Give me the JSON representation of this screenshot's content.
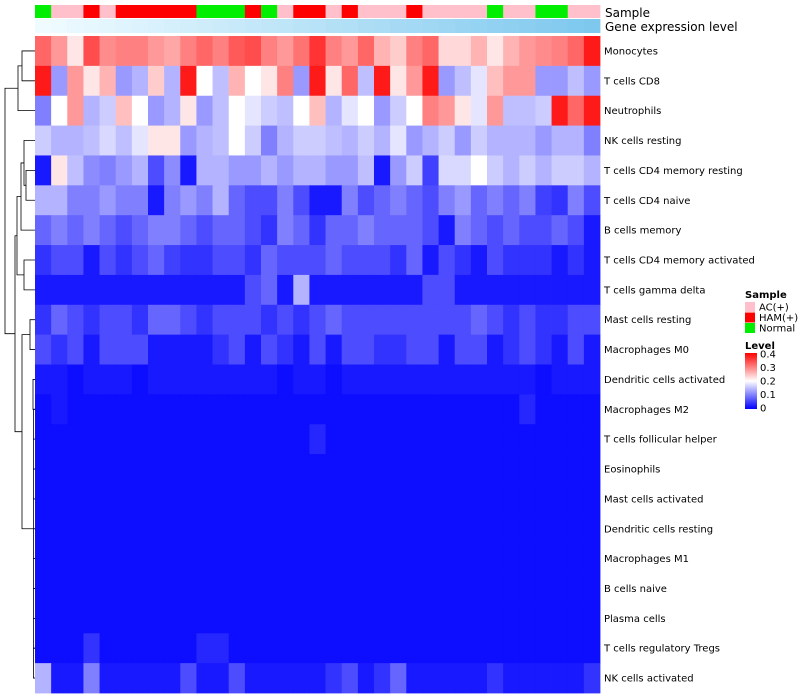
{
  "chart_data": {
    "type": "heatmap",
    "title": "",
    "annotations": [
      {
        "name": "Sample",
        "type": "categorical"
      },
      {
        "name": "Gene expression level",
        "type": "continuous"
      }
    ],
    "sample_groups": [
      "Normal",
      "AC(+)",
      "AC(+)",
      "HAM(+)",
      "AC(+)",
      "HAM(+)",
      "HAM(+)",
      "HAM(+)",
      "HAM(+)",
      "HAM(+)",
      "Normal",
      "Normal",
      "Normal",
      "HAM(+)",
      "Normal",
      "AC(+)",
      "HAM(+)",
      "HAM(+)",
      "AC(+)",
      "HAM(+)",
      "AC(+)",
      "AC(+)",
      "AC(+)",
      "HAM(+)",
      "AC(+)",
      "AC(+)",
      "AC(+)",
      "AC(+)",
      "Normal",
      "AC(+)",
      "AC(+)",
      "Normal",
      "Normal",
      "AC(+)",
      "AC(+)"
    ],
    "rows": [
      "Monocytes",
      "T cells CD8",
      "Neutrophils",
      "NK cells resting",
      "T cells CD4 memory resting",
      "T cells CD4 naive",
      "B cells memory",
      "T cells CD4 memory activated",
      "T cells gamma delta",
      "Mast cells resting",
      "Macrophages M0",
      "Dendritic cells activated",
      "Macrophages M2",
      "T cells follicular helper",
      "Eosinophils",
      "Mast cells activated",
      "Dendritic cells resting",
      "Macrophages M1",
      "B cells naive",
      "Plasma cells",
      "T cells regulatory  Tregs",
      "NK cells activated"
    ],
    "values": [
      [
        0.32,
        0.28,
        0.22,
        0.34,
        0.29,
        0.3,
        0.3,
        0.28,
        0.27,
        0.3,
        0.32,
        0.3,
        0.33,
        0.34,
        0.3,
        0.28,
        0.31,
        0.36,
        0.3,
        0.28,
        0.32,
        0.26,
        0.24,
        0.3,
        0.32,
        0.23,
        0.23,
        0.26,
        0.22,
        0.26,
        0.28,
        0.29,
        0.3,
        0.32,
        0.38
      ],
      [
        0.38,
        0.12,
        0.28,
        0.22,
        0.26,
        0.12,
        0.14,
        0.24,
        0.14,
        0.38,
        0.2,
        0.15,
        0.26,
        0.2,
        0.22,
        0.3,
        0.12,
        0.38,
        0.22,
        0.32,
        0.15,
        0.38,
        0.22,
        0.28,
        0.38,
        0.12,
        0.15,
        0.18,
        0.25,
        0.28,
        0.28,
        0.12,
        0.12,
        0.15,
        0.12
      ],
      [
        0.1,
        0.2,
        0.28,
        0.14,
        0.16,
        0.25,
        0.2,
        0.12,
        0.14,
        0.22,
        0.12,
        0.15,
        0.2,
        0.18,
        0.16,
        0.15,
        0.2,
        0.25,
        0.14,
        0.18,
        0.2,
        0.12,
        0.16,
        0.2,
        0.3,
        0.28,
        0.22,
        0.18,
        0.28,
        0.15,
        0.15,
        0.16,
        0.38,
        0.32,
        0.38
      ],
      [
        0.16,
        0.14,
        0.14,
        0.15,
        0.17,
        0.15,
        0.18,
        0.22,
        0.22,
        0.12,
        0.14,
        0.15,
        0.2,
        0.16,
        0.1,
        0.14,
        0.16,
        0.16,
        0.15,
        0.14,
        0.16,
        0.14,
        0.18,
        0.12,
        0.14,
        0.16,
        0.12,
        0.16,
        0.14,
        0.14,
        0.14,
        0.12,
        0.14,
        0.14,
        0.1
      ],
      [
        0.02,
        0.22,
        0.15,
        0.11,
        0.1,
        0.12,
        0.14,
        0.06,
        0.11,
        0.02,
        0.14,
        0.14,
        0.12,
        0.12,
        0.14,
        0.12,
        0.14,
        0.14,
        0.12,
        0.12,
        0.15,
        0.02,
        0.12,
        0.16,
        0.05,
        0.17,
        0.17,
        0.2,
        0.16,
        0.14,
        0.16,
        0.14,
        0.16,
        0.16,
        0.14
      ],
      [
        0.14,
        0.14,
        0.1,
        0.1,
        0.12,
        0.1,
        0.1,
        0.02,
        0.1,
        0.12,
        0.1,
        0.14,
        0.08,
        0.06,
        0.06,
        0.1,
        0.06,
        0.02,
        0.02,
        0.1,
        0.06,
        0.08,
        0.1,
        0.08,
        0.06,
        0.1,
        0.12,
        0.08,
        0.1,
        0.08,
        0.1,
        0.05,
        0.04,
        0.1,
        0.06
      ],
      [
        0.08,
        0.1,
        0.08,
        0.1,
        0.08,
        0.06,
        0.08,
        0.1,
        0.1,
        0.08,
        0.06,
        0.08,
        0.08,
        0.06,
        0.04,
        0.1,
        0.08,
        0.04,
        0.08,
        0.08,
        0.1,
        0.08,
        0.08,
        0.08,
        0.06,
        0.02,
        0.1,
        0.08,
        0.06,
        0.08,
        0.06,
        0.06,
        0.08,
        0.06,
        0.02
      ],
      [
        0.04,
        0.06,
        0.06,
        0.02,
        0.06,
        0.04,
        0.06,
        0.08,
        0.05,
        0.04,
        0.04,
        0.06,
        0.06,
        0.04,
        0.08,
        0.06,
        0.06,
        0.06,
        0.08,
        0.06,
        0.06,
        0.06,
        0.04,
        0.08,
        0.02,
        0.06,
        0.04,
        0.02,
        0.06,
        0.04,
        0.04,
        0.04,
        0.02,
        0.04,
        0.02
      ],
      [
        0.02,
        0.02,
        0.02,
        0.02,
        0.02,
        0.02,
        0.02,
        0.02,
        0.02,
        0.02,
        0.02,
        0.02,
        0.02,
        0.06,
        0.08,
        0.02,
        0.14,
        0.02,
        0.02,
        0.02,
        0.02,
        0.02,
        0.02,
        0.02,
        0.06,
        0.06,
        0.02,
        0.02,
        0.02,
        0.02,
        0.02,
        0.02,
        0.02,
        0.02,
        0.02
      ],
      [
        0.04,
        0.08,
        0.06,
        0.04,
        0.06,
        0.06,
        0.04,
        0.08,
        0.08,
        0.06,
        0.04,
        0.06,
        0.06,
        0.06,
        0.04,
        0.06,
        0.04,
        0.06,
        0.08,
        0.06,
        0.06,
        0.06,
        0.06,
        0.06,
        0.06,
        0.06,
        0.06,
        0.08,
        0.06,
        0.04,
        0.06,
        0.04,
        0.04,
        0.06,
        0.06
      ],
      [
        0.06,
        0.04,
        0.06,
        0.02,
        0.06,
        0.06,
        0.06,
        0.02,
        0.02,
        0.02,
        0.02,
        0.04,
        0.06,
        0.02,
        0.06,
        0.04,
        0.02,
        0.06,
        0.02,
        0.06,
        0.06,
        0.04,
        0.04,
        0.06,
        0.06,
        0.02,
        0.06,
        0.06,
        0.02,
        0.04,
        0.06,
        0.04,
        0.02,
        0.06,
        0.02
      ],
      [
        0.02,
        0.02,
        0.01,
        0.02,
        0.02,
        0.02,
        0.01,
        0.02,
        0.02,
        0.02,
        0.02,
        0.02,
        0.02,
        0.02,
        0.02,
        0.01,
        0.02,
        0.02,
        0.01,
        0.02,
        0.02,
        0.02,
        0.02,
        0.02,
        0.02,
        0.02,
        0.02,
        0.02,
        0.02,
        0.02,
        0.02,
        0.01,
        0.02,
        0.02,
        0.02
      ],
      [
        0.01,
        0.02,
        0.01,
        0.01,
        0.01,
        0.01,
        0.01,
        0.01,
        0.01,
        0.01,
        0.01,
        0.01,
        0.01,
        0.01,
        0.01,
        0.01,
        0.01,
        0.01,
        0.01,
        0.01,
        0.01,
        0.01,
        0.01,
        0.01,
        0.01,
        0.01,
        0.01,
        0.01,
        0.01,
        0.01,
        0.03,
        0.01,
        0.01,
        0.01,
        0.01
      ],
      [
        0.01,
        0.01,
        0.01,
        0.01,
        0.01,
        0.01,
        0.01,
        0.01,
        0.01,
        0.01,
        0.01,
        0.01,
        0.01,
        0.01,
        0.01,
        0.01,
        0.01,
        0.03,
        0.01,
        0.01,
        0.01,
        0.01,
        0.01,
        0.01,
        0.01,
        0.01,
        0.01,
        0.01,
        0.01,
        0.01,
        0.01,
        0.01,
        0.01,
        0.01,
        0.01
      ],
      [
        0.01,
        0.01,
        0.01,
        0.01,
        0.01,
        0.01,
        0.01,
        0.01,
        0.01,
        0.01,
        0.01,
        0.01,
        0.01,
        0.01,
        0.01,
        0.01,
        0.01,
        0.01,
        0.01,
        0.01,
        0.01,
        0.01,
        0.01,
        0.01,
        0.01,
        0.01,
        0.01,
        0.01,
        0.01,
        0.01,
        0.01,
        0.01,
        0.01,
        0.01,
        0.01
      ],
      [
        0.01,
        0.01,
        0.01,
        0.01,
        0.01,
        0.01,
        0.01,
        0.01,
        0.01,
        0.01,
        0.01,
        0.01,
        0.01,
        0.01,
        0.01,
        0.01,
        0.01,
        0.01,
        0.01,
        0.01,
        0.01,
        0.01,
        0.01,
        0.01,
        0.01,
        0.01,
        0.01,
        0.01,
        0.01,
        0.01,
        0.01,
        0.01,
        0.01,
        0.01,
        0.01
      ],
      [
        0.01,
        0.01,
        0.01,
        0.01,
        0.01,
        0.01,
        0.01,
        0.01,
        0.01,
        0.01,
        0.01,
        0.01,
        0.01,
        0.01,
        0.01,
        0.01,
        0.01,
        0.01,
        0.01,
        0.01,
        0.01,
        0.01,
        0.01,
        0.01,
        0.01,
        0.01,
        0.01,
        0.01,
        0.01,
        0.01,
        0.01,
        0.01,
        0.01,
        0.01,
        0.01
      ],
      [
        0.01,
        0.01,
        0.01,
        0.01,
        0.01,
        0.01,
        0.01,
        0.01,
        0.01,
        0.01,
        0.01,
        0.01,
        0.01,
        0.01,
        0.01,
        0.01,
        0.01,
        0.01,
        0.01,
        0.01,
        0.01,
        0.01,
        0.01,
        0.01,
        0.01,
        0.01,
        0.01,
        0.01,
        0.01,
        0.01,
        0.01,
        0.01,
        0.01,
        0.01,
        0.01
      ],
      [
        0.01,
        0.01,
        0.01,
        0.01,
        0.01,
        0.01,
        0.01,
        0.01,
        0.01,
        0.01,
        0.01,
        0.01,
        0.01,
        0.01,
        0.01,
        0.01,
        0.01,
        0.01,
        0.01,
        0.01,
        0.01,
        0.01,
        0.01,
        0.01,
        0.01,
        0.01,
        0.01,
        0.01,
        0.01,
        0.01,
        0.01,
        0.01,
        0.01,
        0.01,
        0.01
      ],
      [
        0.01,
        0.01,
        0.01,
        0.01,
        0.01,
        0.01,
        0.01,
        0.01,
        0.01,
        0.01,
        0.01,
        0.01,
        0.01,
        0.01,
        0.01,
        0.01,
        0.01,
        0.01,
        0.01,
        0.01,
        0.01,
        0.01,
        0.01,
        0.01,
        0.01,
        0.01,
        0.01,
        0.01,
        0.01,
        0.01,
        0.01,
        0.01,
        0.01,
        0.01,
        0.01
      ],
      [
        0.01,
        0.01,
        0.01,
        0.04,
        0.01,
        0.01,
        0.01,
        0.01,
        0.01,
        0.01,
        0.03,
        0.03,
        0.01,
        0.01,
        0.01,
        0.01,
        0.01,
        0.01,
        0.01,
        0.01,
        0.01,
        0.01,
        0.01,
        0.01,
        0.01,
        0.01,
        0.01,
        0.01,
        0.01,
        0.01,
        0.01,
        0.01,
        0.01,
        0.01,
        0.01
      ],
      [
        0.14,
        0.02,
        0.02,
        0.1,
        0.02,
        0.02,
        0.02,
        0.02,
        0.02,
        0.06,
        0.02,
        0.02,
        0.06,
        0.02,
        0.02,
        0.02,
        0.02,
        0.02,
        0.04,
        0.06,
        0.02,
        0.04,
        0.08,
        0.02,
        0.02,
        0.02,
        0.02,
        0.02,
        0.04,
        0.02,
        0.02,
        0.02,
        0.02,
        0.02,
        0.04
      ]
    ],
    "color_scale": {
      "min": 0,
      "max": 0.4,
      "low": "#0000ff",
      "mid": "#ffffff",
      "high": "#ff0000",
      "midpoint": 0.2
    },
    "sample_colors": {
      "AC(+)": "#ffc0cb",
      "HAM(+)": "#ff0000",
      "Normal": "#00ee00"
    },
    "expression_bar_colors": {
      "start": "#f0fbff",
      "end": "#7ec8ee"
    },
    "legend": {
      "sample_title": "Sample",
      "sample_items": [
        "AC(+)",
        "HAM(+)",
        "Normal"
      ],
      "level_title": "Level",
      "level_ticks": [
        "0.4",
        "0.3",
        "0.2",
        "0.1",
        "0"
      ],
      "position": "right"
    }
  }
}
